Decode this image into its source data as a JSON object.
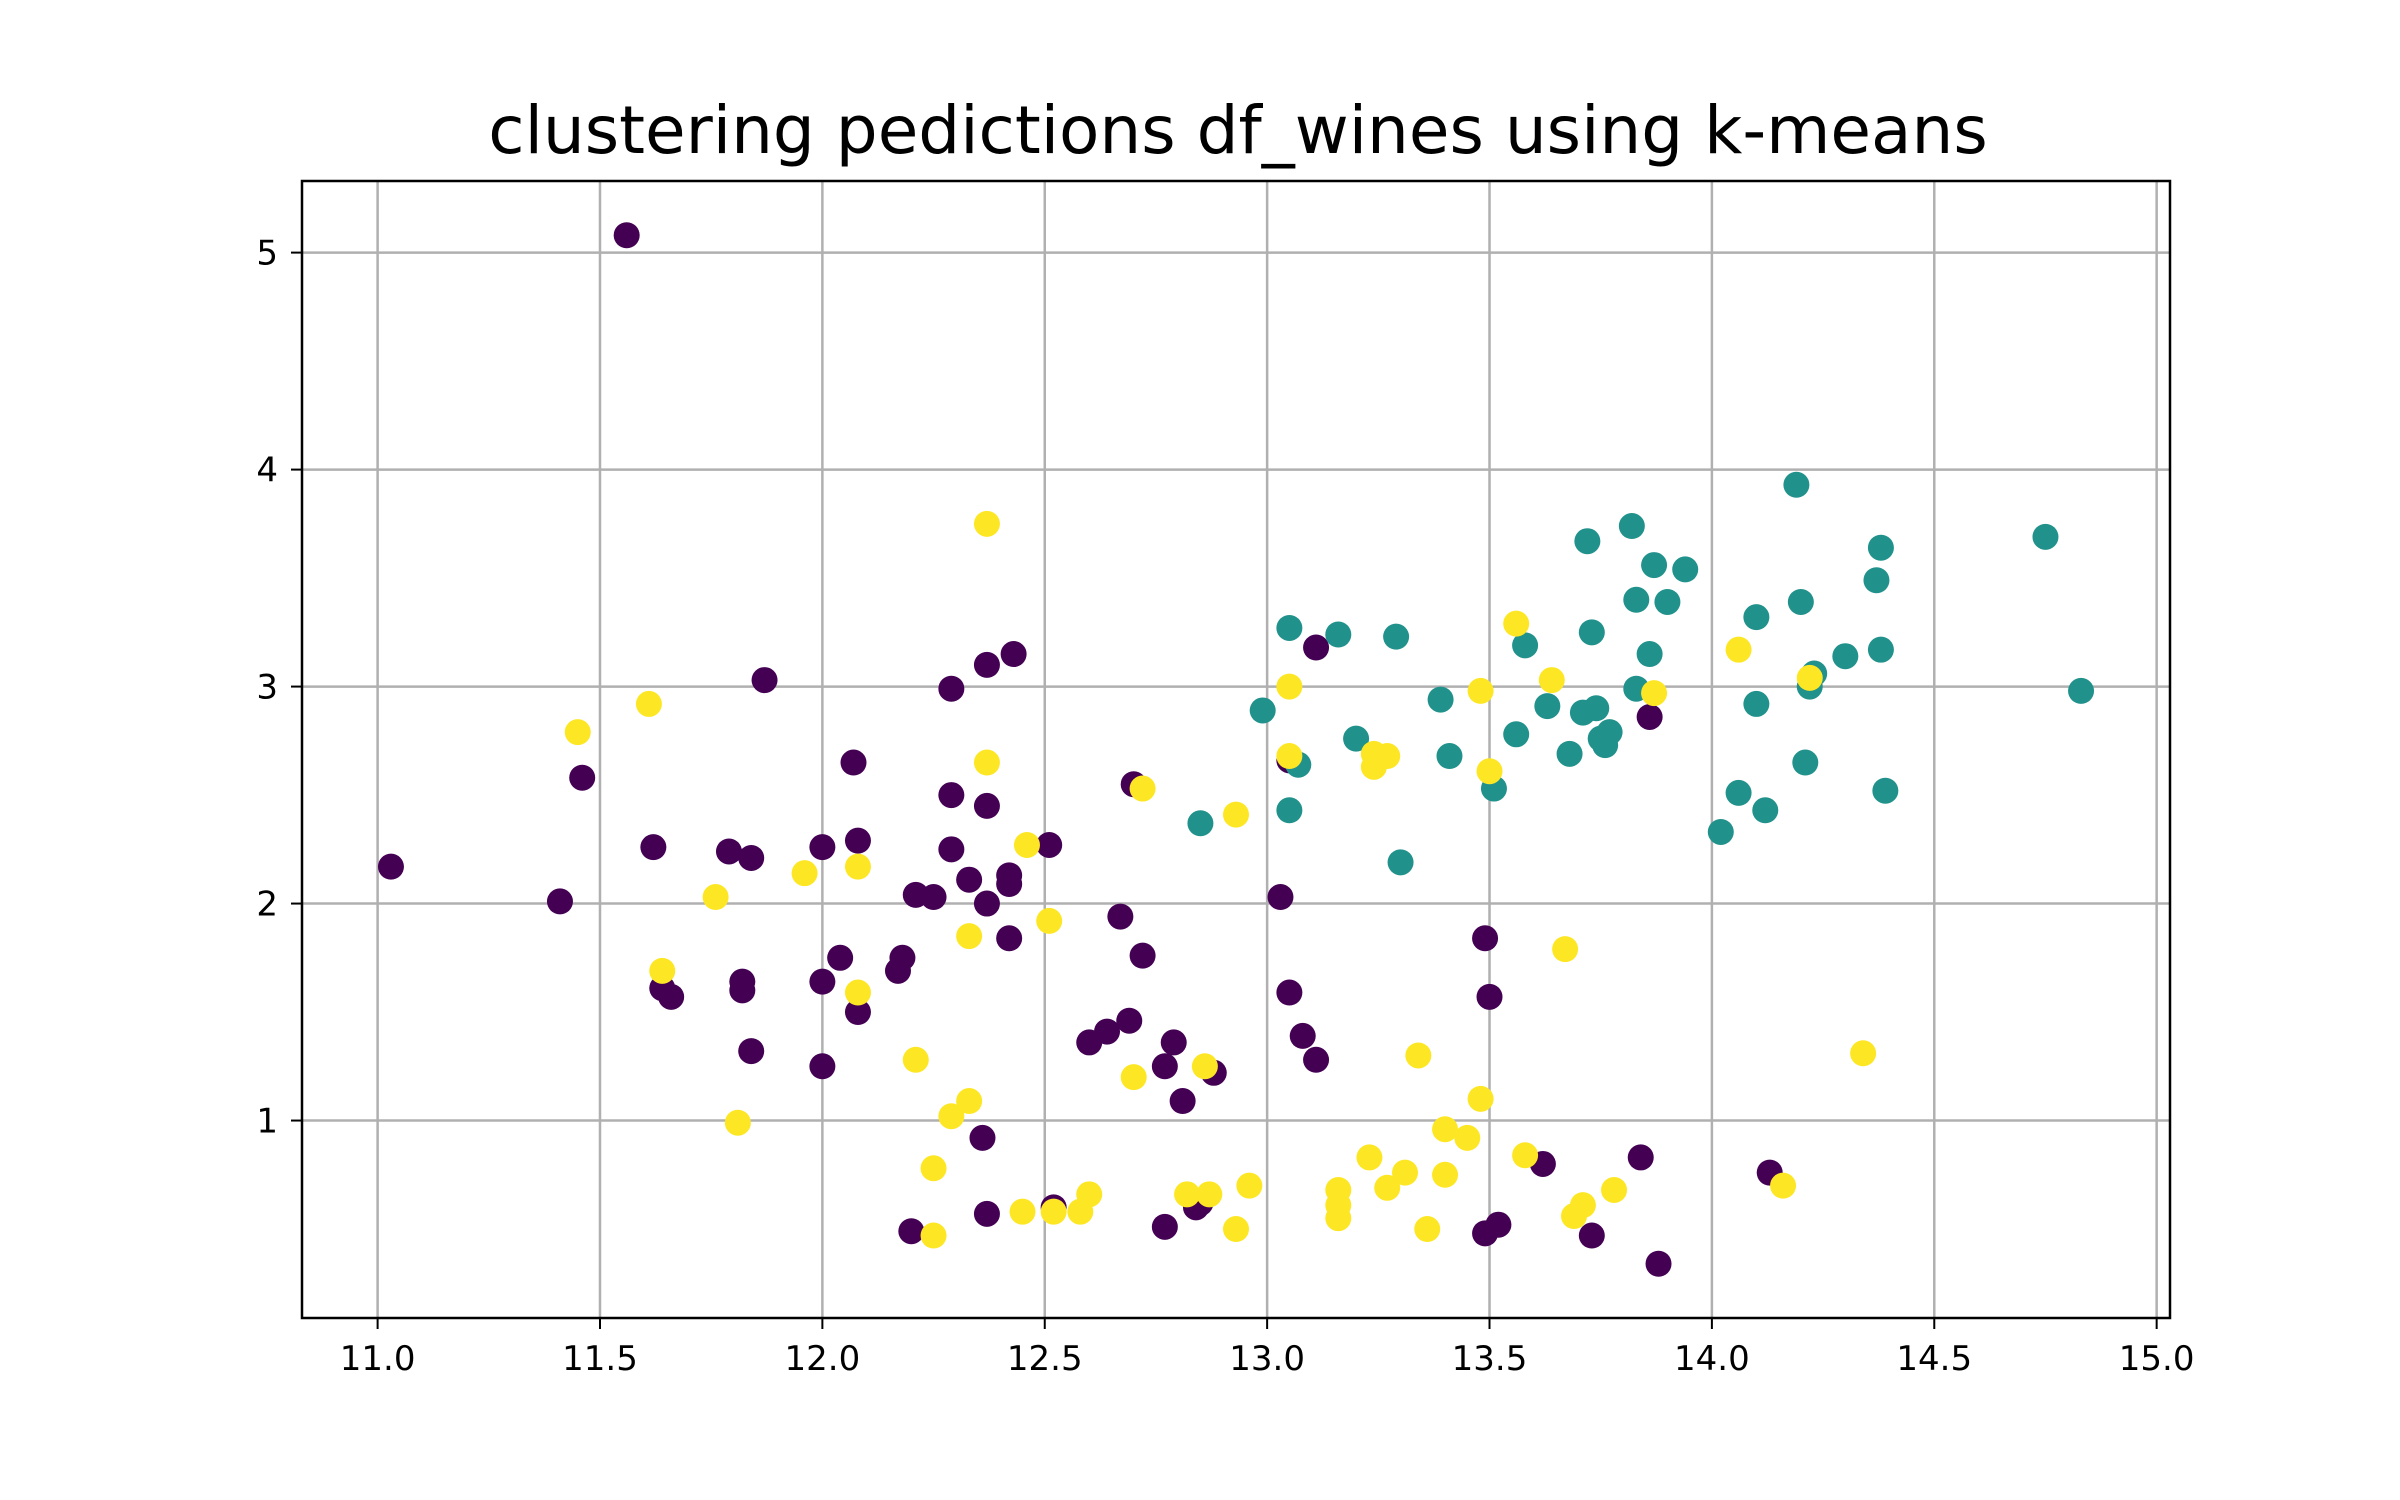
{
  "chart_data": {
    "type": "scatter",
    "title": "clustering pedictions df_wines using k-means",
    "xlabel": "",
    "ylabel": "",
    "xlim": [
      10.83,
      15.03
    ],
    "ylim": [
      0.09,
      5.33
    ],
    "xticks": [
      11.0,
      11.5,
      12.0,
      12.5,
      13.0,
      13.5,
      14.0,
      14.5,
      15.0
    ],
    "xtick_labels": [
      "11.0",
      "11.5",
      "12.0",
      "12.5",
      "13.0",
      "13.5",
      "14.0",
      "14.5",
      "15.0"
    ],
    "yticks": [
      1,
      2,
      3,
      4,
      5
    ],
    "ytick_labels": [
      "1",
      "2",
      "3",
      "4",
      "5"
    ],
    "grid": true,
    "series": [
      {
        "color": "#440154",
        "points": [
          [
            11.03,
            2.17
          ],
          [
            11.41,
            2.01
          ],
          [
            11.46,
            2.58
          ],
          [
            11.56,
            5.08
          ],
          [
            11.62,
            2.26
          ],
          [
            11.64,
            1.61
          ],
          [
            11.66,
            1.57
          ],
          [
            11.79,
            2.24
          ],
          [
            11.82,
            1.64
          ],
          [
            11.82,
            1.6
          ],
          [
            11.84,
            2.21
          ],
          [
            11.84,
            1.32
          ],
          [
            11.87,
            3.03
          ],
          [
            12.0,
            2.26
          ],
          [
            12.0,
            1.64
          ],
          [
            12.0,
            1.25
          ],
          [
            12.04,
            1.75
          ],
          [
            12.07,
            2.65
          ],
          [
            12.08,
            2.29
          ],
          [
            12.08,
            1.5
          ],
          [
            12.17,
            1.69
          ],
          [
            12.18,
            1.75
          ],
          [
            12.2,
            0.49
          ],
          [
            12.21,
            2.04
          ],
          [
            12.25,
            2.03
          ],
          [
            12.29,
            2.99
          ],
          [
            12.29,
            2.5
          ],
          [
            12.29,
            2.25
          ],
          [
            12.33,
            2.11
          ],
          [
            12.36,
            0.92
          ],
          [
            12.37,
            3.1
          ],
          [
            12.37,
            2.45
          ],
          [
            12.37,
            2.0
          ],
          [
            12.37,
            0.57
          ],
          [
            12.42,
            2.13
          ],
          [
            12.42,
            2.09
          ],
          [
            12.42,
            1.84
          ],
          [
            12.43,
            3.15
          ],
          [
            12.51,
            2.27
          ],
          [
            12.52,
            0.6
          ],
          [
            12.6,
            1.36
          ],
          [
            12.64,
            1.41
          ],
          [
            12.67,
            1.94
          ],
          [
            12.69,
            1.46
          ],
          [
            12.7,
            2.55
          ],
          [
            12.72,
            1.76
          ],
          [
            12.77,
            1.25
          ],
          [
            12.77,
            0.51
          ],
          [
            12.79,
            1.36
          ],
          [
            12.81,
            1.09
          ],
          [
            12.84,
            0.6
          ],
          [
            12.85,
            0.62
          ],
          [
            12.88,
            1.22
          ],
          [
            13.03,
            2.03
          ],
          [
            13.05,
            2.66
          ],
          [
            13.05,
            1.59
          ],
          [
            13.08,
            1.39
          ],
          [
            13.11,
            3.18
          ],
          [
            13.11,
            1.28
          ],
          [
            13.49,
            1.84
          ],
          [
            13.49,
            0.48
          ],
          [
            13.5,
            1.57
          ],
          [
            13.52,
            0.52
          ],
          [
            13.62,
            0.8
          ],
          [
            13.73,
            0.47
          ],
          [
            13.84,
            0.83
          ],
          [
            13.86,
            2.86
          ],
          [
            13.88,
            0.34
          ],
          [
            14.13,
            0.76
          ]
        ]
      },
      {
        "color": "#21918c",
        "points": [
          [
            12.85,
            2.37
          ],
          [
            12.99,
            2.89
          ],
          [
            13.05,
            3.27
          ],
          [
            13.05,
            2.43
          ],
          [
            13.07,
            2.64
          ],
          [
            13.16,
            3.24
          ],
          [
            13.2,
            2.76
          ],
          [
            13.29,
            3.23
          ],
          [
            13.3,
            2.19
          ],
          [
            13.39,
            2.94
          ],
          [
            13.41,
            2.68
          ],
          [
            13.51,
            2.53
          ],
          [
            13.56,
            2.78
          ],
          [
            13.58,
            3.19
          ],
          [
            13.63,
            2.91
          ],
          [
            13.68,
            2.69
          ],
          [
            13.71,
            2.88
          ],
          [
            13.72,
            3.67
          ],
          [
            13.73,
            3.25
          ],
          [
            13.74,
            2.9
          ],
          [
            13.75,
            2.76
          ],
          [
            13.76,
            2.73
          ],
          [
            13.77,
            2.79
          ],
          [
            13.82,
            3.74
          ],
          [
            13.83,
            3.4
          ],
          [
            13.83,
            2.99
          ],
          [
            13.86,
            3.15
          ],
          [
            13.87,
            3.56
          ],
          [
            13.9,
            3.39
          ],
          [
            13.94,
            3.54
          ],
          [
            14.02,
            2.33
          ],
          [
            14.06,
            2.51
          ],
          [
            14.1,
            3.32
          ],
          [
            14.1,
            2.92
          ],
          [
            14.12,
            2.43
          ],
          [
            14.19,
            3.93
          ],
          [
            14.2,
            3.39
          ],
          [
            14.21,
            2.65
          ],
          [
            14.22,
            3.0
          ],
          [
            14.23,
            3.06
          ],
          [
            14.3,
            3.14
          ],
          [
            14.37,
            3.49
          ],
          [
            14.38,
            3.64
          ],
          [
            14.38,
            3.17
          ],
          [
            14.39,
            2.52
          ],
          [
            14.75,
            3.69
          ],
          [
            14.83,
            2.98
          ]
        ]
      },
      {
        "color": "#fde725",
        "points": [
          [
            11.45,
            2.79
          ],
          [
            11.61,
            2.92
          ],
          [
            11.64,
            1.69
          ],
          [
            11.76,
            2.03
          ],
          [
            11.81,
            0.99
          ],
          [
            11.96,
            2.14
          ],
          [
            12.08,
            2.17
          ],
          [
            12.08,
            1.59
          ],
          [
            12.21,
            1.28
          ],
          [
            12.25,
            0.78
          ],
          [
            12.25,
            0.47
          ],
          [
            12.29,
            1.02
          ],
          [
            12.33,
            1.85
          ],
          [
            12.33,
            1.09
          ],
          [
            12.37,
            3.75
          ],
          [
            12.37,
            2.65
          ],
          [
            12.45,
            0.58
          ],
          [
            12.46,
            2.27
          ],
          [
            12.51,
            1.92
          ],
          [
            12.52,
            0.58
          ],
          [
            12.58,
            0.58
          ],
          [
            12.6,
            0.66
          ],
          [
            12.7,
            1.2
          ],
          [
            12.72,
            2.53
          ],
          [
            12.82,
            0.66
          ],
          [
            12.86,
            1.25
          ],
          [
            12.87,
            0.66
          ],
          [
            12.93,
            2.41
          ],
          [
            12.93,
            0.5
          ],
          [
            12.96,
            0.7
          ],
          [
            13.05,
            3.0
          ],
          [
            13.05,
            2.68
          ],
          [
            13.16,
            0.68
          ],
          [
            13.16,
            0.61
          ],
          [
            13.16,
            0.55
          ],
          [
            13.23,
            0.83
          ],
          [
            13.24,
            2.69
          ],
          [
            13.24,
            2.63
          ],
          [
            13.27,
            2.68
          ],
          [
            13.27,
            0.69
          ],
          [
            13.31,
            0.76
          ],
          [
            13.34,
            1.3
          ],
          [
            13.36,
            0.5
          ],
          [
            13.4,
            0.96
          ],
          [
            13.4,
            0.75
          ],
          [
            13.45,
            0.92
          ],
          [
            13.48,
            2.98
          ],
          [
            13.48,
            1.1
          ],
          [
            13.5,
            2.61
          ],
          [
            13.56,
            3.29
          ],
          [
            13.58,
            0.84
          ],
          [
            13.64,
            3.03
          ],
          [
            13.67,
            1.79
          ],
          [
            13.69,
            0.56
          ],
          [
            13.71,
            0.61
          ],
          [
            13.78,
            0.68
          ],
          [
            13.87,
            2.97
          ],
          [
            14.06,
            3.17
          ],
          [
            14.16,
            0.7
          ],
          [
            14.22,
            3.04
          ],
          [
            14.34,
            1.31
          ]
        ]
      }
    ]
  }
}
